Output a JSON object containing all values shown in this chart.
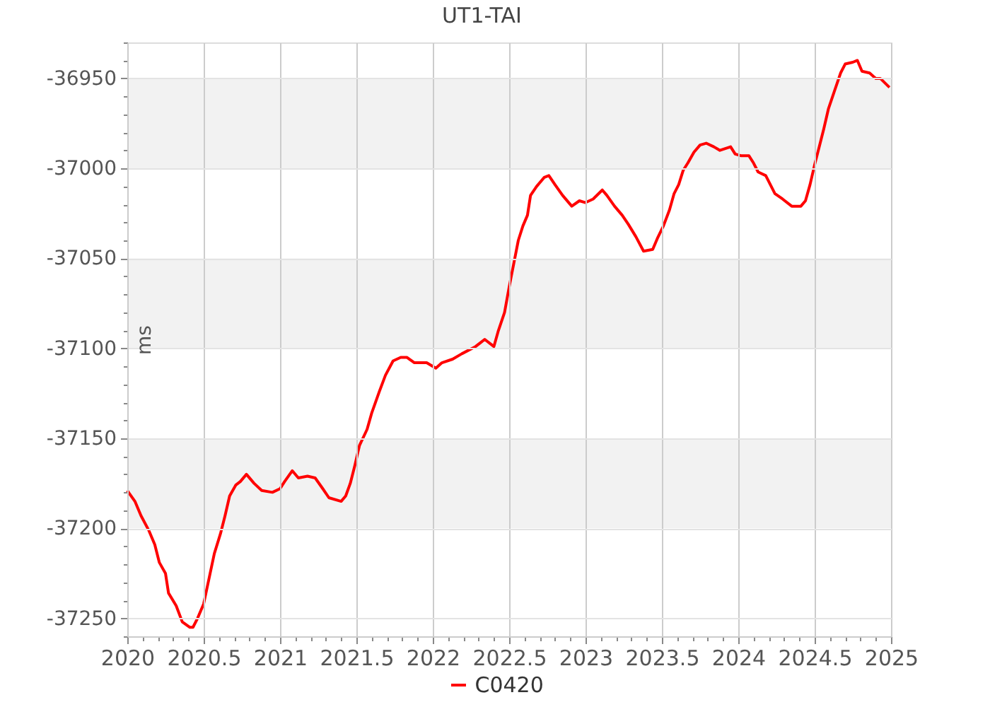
{
  "chart_data": {
    "type": "line",
    "title": "UT1-TAI",
    "ylabel": "ms",
    "xlim": [
      2020,
      2025
    ],
    "ylim": [
      -37260,
      -36930
    ],
    "xticks": [
      2020,
      {
        "value": 2020.1,
        "label": null
      },
      {
        "value": 2020.2,
        "label": null
      },
      {
        "value": 2020.3,
        "label": null
      },
      {
        "value": 2020.4,
        "label": null
      },
      2020.5,
      {
        "value": 2020.6,
        "label": null
      },
      {
        "value": 2020.7,
        "label": null
      },
      {
        "value": 2020.8,
        "label": null
      },
      {
        "value": 2020.9,
        "label": null
      },
      2021,
      {
        "value": 2021.1,
        "label": null
      },
      {
        "value": 2021.2,
        "label": null
      },
      {
        "value": 2021.3,
        "label": null
      },
      {
        "value": 2021.4,
        "label": null
      },
      2021.5,
      {
        "value": 2021.6,
        "label": null
      },
      {
        "value": 2021.7,
        "label": null
      },
      {
        "value": 2021.8,
        "label": null
      },
      {
        "value": 2021.9,
        "label": null
      },
      2022,
      {
        "value": 2022.1,
        "label": null
      },
      {
        "value": 2022.2,
        "label": null
      },
      {
        "value": 2022.3,
        "label": null
      },
      {
        "value": 2022.4,
        "label": null
      },
      2022.5,
      {
        "value": 2022.6,
        "label": null
      },
      {
        "value": 2022.7,
        "label": null
      },
      {
        "value": 2022.8,
        "label": null
      },
      {
        "value": 2022.9,
        "label": null
      },
      2023,
      {
        "value": 2023.1,
        "label": null
      },
      {
        "value": 2023.2,
        "label": null
      },
      {
        "value": 2023.3,
        "label": null
      },
      {
        "value": 2023.4,
        "label": null
      },
      2023.5,
      {
        "value": 2023.6,
        "label": null
      },
      {
        "value": 2023.7,
        "label": null
      },
      {
        "value": 2023.8,
        "label": null
      },
      {
        "value": 2023.9,
        "label": null
      },
      2024,
      {
        "value": 2024.1,
        "label": null
      },
      {
        "value": 2024.2,
        "label": null
      },
      {
        "value": 2024.3,
        "label": null
      },
      {
        "value": 2024.4,
        "label": null
      },
      2024.5,
      {
        "value": 2024.6,
        "label": null
      },
      {
        "value": 2024.7,
        "label": null
      },
      {
        "value": 2024.8,
        "label": null
      },
      {
        "value": 2024.9,
        "label": null
      },
      2025
    ],
    "yticks": [
      {
        "value": -37260,
        "label": null
      },
      -37250,
      {
        "value": -37240,
        "label": null
      },
      {
        "value": -37230,
        "label": null
      },
      {
        "value": -37220,
        "label": null
      },
      {
        "value": -37210,
        "label": null
      },
      -37200,
      {
        "value": -37190,
        "label": null
      },
      {
        "value": -37180,
        "label": null
      },
      {
        "value": -37170,
        "label": null
      },
      {
        "value": -37160,
        "label": null
      },
      -37150,
      {
        "value": -37140,
        "label": null
      },
      {
        "value": -37130,
        "label": null
      },
      {
        "value": -37120,
        "label": null
      },
      {
        "value": -37110,
        "label": null
      },
      -37100,
      {
        "value": -37090,
        "label": null
      },
      {
        "value": -37080,
        "label": null
      },
      {
        "value": -37070,
        "label": null
      },
      {
        "value": -37060,
        "label": null
      },
      -37050,
      {
        "value": -37040,
        "label": null
      },
      {
        "value": -37030,
        "label": null
      },
      {
        "value": -37020,
        "label": null
      },
      {
        "value": -37010,
        "label": null
      },
      -37000,
      {
        "value": -36990,
        "label": null
      },
      {
        "value": -36980,
        "label": null
      },
      {
        "value": -36970,
        "label": null
      },
      {
        "value": -36960,
        "label": null
      },
      -36950,
      {
        "value": -36940,
        "label": null
      },
      {
        "value": -36930,
        "label": null
      }
    ],
    "grid": true,
    "legend": "bottom",
    "bands": [
      {
        "axis": "y",
        "from": -37200,
        "to": -37150,
        "color": "#f2f2f2"
      },
      {
        "axis": "y",
        "from": -37100,
        "to": -37050,
        "color": "#f2f2f2"
      },
      {
        "axis": "y",
        "from": -37000,
        "to": -36950,
        "color": "#f2f2f2"
      }
    ],
    "x": [
      2020.0,
      2020.05,
      2020.09,
      2020.14,
      2020.18,
      2020.21,
      2020.25,
      2020.27,
      2020.32,
      2020.36,
      2020.41,
      2020.43,
      2020.46,
      2020.5,
      2020.54,
      2020.57,
      2020.61,
      2020.64,
      2020.67,
      2020.71,
      2020.74,
      2020.78,
      2020.83,
      2020.88,
      2020.95,
      2021.0,
      2021.03,
      2021.08,
      2021.12,
      2021.18,
      2021.23,
      2021.28,
      2021.32,
      2021.4,
      2021.43,
      2021.46,
      2021.49,
      2021.52,
      2021.57,
      2021.6,
      2021.65,
      2021.69,
      2021.74,
      2021.79,
      2021.83,
      2021.88,
      2021.96,
      2022.02,
      2022.06,
      2022.13,
      2022.19,
      2022.28,
      2022.31,
      2022.34,
      2022.4,
      2022.43,
      2022.47,
      2022.5,
      2022.53,
      2022.56,
      2022.59,
      2022.62,
      2022.64,
      2022.68,
      2022.73,
      2022.76,
      2022.8,
      2022.85,
      2022.91,
      2022.96,
      2023.0,
      2023.05,
      2023.11,
      2023.14,
      2023.19,
      2023.24,
      2023.28,
      2023.33,
      2023.38,
      2023.44,
      2023.47,
      2023.51,
      2023.55,
      2023.58,
      2023.61,
      2023.64,
      2023.67,
      2023.71,
      2023.75,
      2023.79,
      2023.84,
      2023.88,
      2023.95,
      2023.98,
      2024.02,
      2024.07,
      2024.1,
      2024.13,
      2024.18,
      2024.21,
      2024.24,
      2024.29,
      2024.35,
      2024.41,
      2024.44,
      2024.47,
      2024.5,
      2024.53,
      2024.56,
      2024.59,
      2024.63,
      2024.67,
      2024.7,
      2024.75,
      2024.78,
      2024.81,
      2024.86,
      2024.9,
      2024.93,
      2024.99
    ],
    "series": [
      {
        "name": "C0420",
        "color": "#ff0000",
        "values": [
          -37179,
          -37185,
          -37193,
          -37201,
          -37209,
          -37219,
          -37225,
          -37236,
          -37243,
          -37252,
          -37255,
          -37255,
          -37250,
          -37242,
          -37226,
          -37214,
          -37203,
          -37193,
          -37182,
          -37176,
          -37174,
          -37170,
          -37175,
          -37179,
          -37180,
          -37178,
          -37174,
          -37168,
          -37172,
          -37171,
          -37172,
          -37178,
          -37183,
          -37185,
          -37182,
          -37175,
          -37165,
          -37154,
          -37145,
          -37136,
          -37124,
          -37115,
          -37107,
          -37105,
          -37105,
          -37108,
          -37108,
          -37111,
          -37108,
          -37106,
          -37103,
          -37099,
          -37097,
          -37095,
          -37099,
          -37090,
          -37080,
          -37066,
          -37053,
          -37040,
          -37032,
          -37026,
          -37015,
          -37010,
          -37005,
          -37004,
          -37009,
          -37015,
          -37021,
          -37018,
          -37019,
          -37017,
          -37012,
          -37015,
          -37021,
          -37026,
          -37031,
          -37038,
          -37046,
          -37045,
          -37039,
          -37032,
          -37023,
          -37014,
          -37009,
          -37001,
          -36997,
          -36991,
          -36987,
          -36986,
          -36988,
          -36990,
          -36988,
          -36992,
          -36993,
          -36993,
          -36997,
          -37002,
          -37004,
          -37009,
          -37014,
          -37017,
          -37021,
          -37021,
          -37018,
          -37009,
          -36998,
          -36988,
          -36978,
          -36967,
          -36957,
          -36947,
          -36942,
          -36941,
          -36940,
          -36946,
          -36947,
          -36950,
          -36950,
          -36955
        ]
      }
    ]
  }
}
